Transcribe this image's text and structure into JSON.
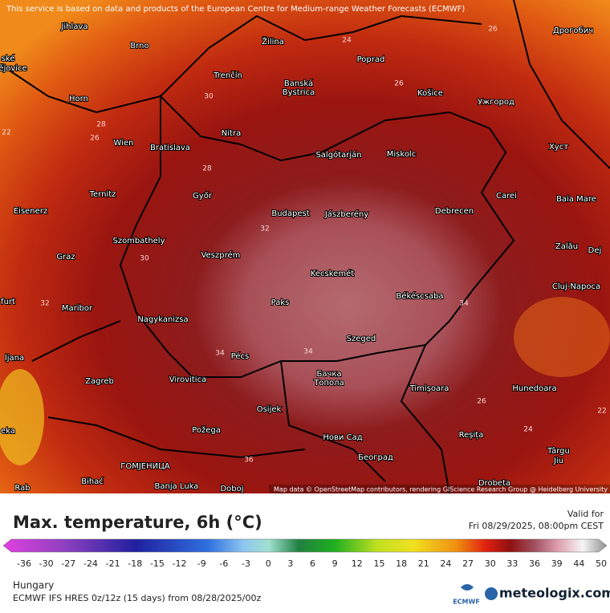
{
  "banner": "This service is based on data and products of the European Centre for Medium-range Weather Forecasts (ECMWF)",
  "map": {
    "cities": [
      "Jihlava",
      "Brno",
      "Žilina",
      "Poprad",
      "Дрогобич",
      "Trenčín",
      "Banská",
      "Bystrica",
      "Košice",
      "Ужгород",
      "Horn",
      "Nitra",
      "Salgótarján",
      "Miskolc",
      "Хуст",
      "Wien",
      "Bratislava",
      "Ternitz",
      "Győr",
      "Carei",
      "Baia Mare",
      "Budapest",
      "Jászberény",
      "Debrecen",
      "Eisenerz",
      "Szombathely",
      "Zalău",
      "Graz",
      "Veszprém",
      "Dej",
      "Kecskemét",
      "Cluj-Napoca",
      "Maribor",
      "Paks",
      "Békéscsaba",
      "Nagykanizsa",
      "Pécs",
      "Szeged",
      "Zagreb",
      "Virovitica",
      "Бачка",
      "Топола",
      "Timișoara",
      "Hunedoara",
      "Osijek",
      "Požega",
      "Нови Сад",
      "Reșița",
      "ГОМЈЕНИЦА",
      "Banja Luka",
      "Bihać",
      "Doboj",
      "Београд",
      "Târgu",
      "Jiu",
      "Drobeta",
      "ské",
      "ějovice",
      "furt",
      "ljana",
      "eka",
      "Rab"
    ],
    "contour_labels": [
      "28",
      "24",
      "26",
      "26",
      "28",
      "26",
      "22",
      "30",
      "30",
      "32",
      "32",
      "34",
      "34",
      "34",
      "36",
      "24",
      "22",
      "26"
    ],
    "attribution": "Map data © OpenStreetMap contributors, rendering GIScience Research Group @ Heidelberg University"
  },
  "legend": {
    "title": "Max. temperature, 6h (°C)",
    "valid_label": "Valid for",
    "valid_time": "Fri 08/29/2025, 08:00pm CEST",
    "ticks": [
      -36,
      -30,
      -27,
      -24,
      -21,
      -18,
      -15,
      -12,
      -9,
      -6,
      -3,
      0,
      3,
      6,
      9,
      12,
      15,
      18,
      21,
      24,
      27,
      30,
      33,
      36,
      39,
      44,
      50
    ]
  },
  "footer": {
    "region": "Hungary",
    "model": "ECMWF IFS HRES 0z/12z (15 days) from 08/28/2025/00z",
    "ecmwf_logo": "ECMWF",
    "brand": "meteologix.com"
  }
}
